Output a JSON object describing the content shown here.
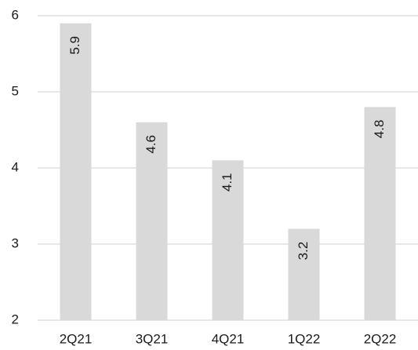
{
  "chart_data": {
    "type": "bar",
    "title": "",
    "xlabel": "",
    "ylabel": "",
    "categories": [
      "2Q21",
      "3Q21",
      "4Q21",
      "1Q22",
      "2Q22"
    ],
    "values": [
      5.9,
      4.6,
      4.1,
      3.2,
      4.8
    ],
    "data_labels": [
      "5.9",
      "4.6",
      "4.1",
      "3.2",
      "4.8"
    ],
    "ylim": [
      2,
      6
    ],
    "yticks": [
      "2",
      "3",
      "4",
      "5",
      "6"
    ],
    "grid": true,
    "legend": "none",
    "data_label_orientation": "rotated-vertical",
    "colors": {
      "bar": "#d9d9d9",
      "grid": "#d9d9d9",
      "text": "#1a1a1a"
    }
  }
}
